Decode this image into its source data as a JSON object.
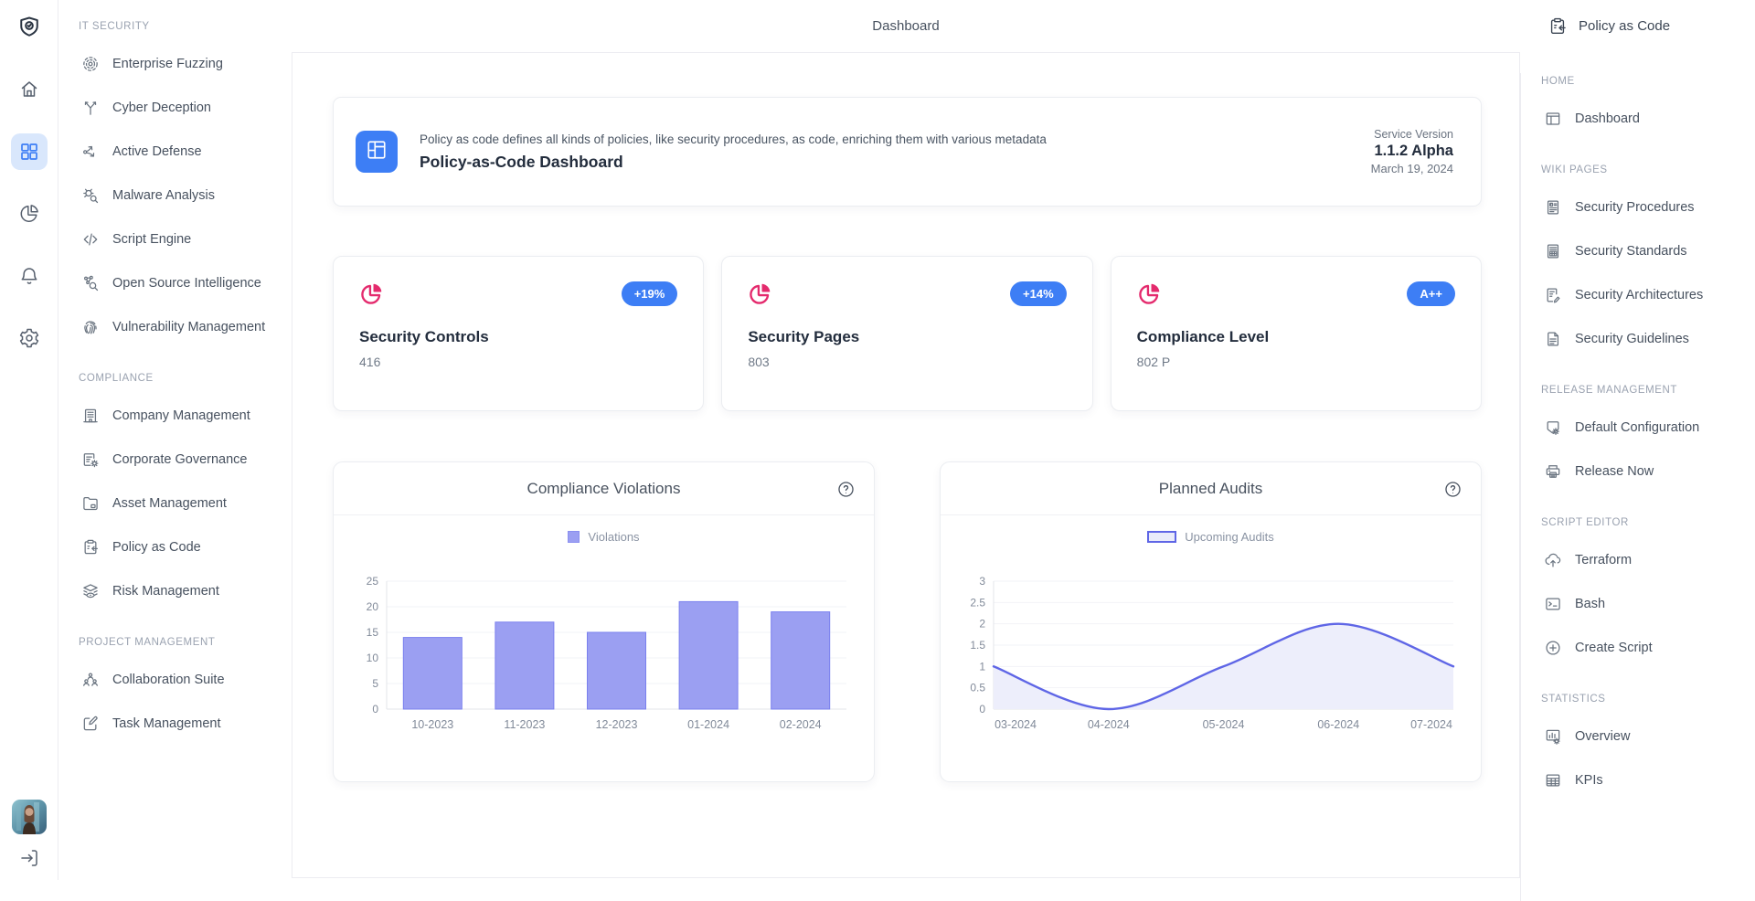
{
  "topbar": {
    "title": "Dashboard"
  },
  "rail": {
    "items": [
      {
        "name": "app-logo",
        "icon": "shield-logo-icon",
        "interactable": false,
        "active": false
      },
      {
        "name": "rail-home",
        "icon": "home-icon",
        "interactable": true,
        "active": false
      },
      {
        "name": "rail-dashboard",
        "icon": "grid-icon",
        "interactable": true,
        "active": true
      },
      {
        "name": "rail-analytics",
        "icon": "pie-chart-icon",
        "interactable": true,
        "active": false
      },
      {
        "name": "rail-notifications",
        "icon": "bell-icon",
        "interactable": true,
        "active": false
      },
      {
        "name": "rail-settings",
        "icon": "gear-icon",
        "interactable": true,
        "active": false
      }
    ],
    "avatar_name": "user-avatar",
    "logout_icon": "logout-icon"
  },
  "sidebar": {
    "sections": [
      {
        "header": "IT SECURITY",
        "items": [
          {
            "label": "Enterprise Fuzzing",
            "icon": "target-icon"
          },
          {
            "label": "Cyber Deception",
            "icon": "branch-icon"
          },
          {
            "label": "Active Defense",
            "icon": "route-icon"
          },
          {
            "label": "Malware Analysis",
            "icon": "bug-search-icon"
          },
          {
            "label": "Script Engine",
            "icon": "code-icon"
          },
          {
            "label": "Open Source Intelligence",
            "icon": "network-search-icon"
          },
          {
            "label": "Vulnerability Management",
            "icon": "fingerprint-icon"
          }
        ]
      },
      {
        "header": "COMPLIANCE",
        "items": [
          {
            "label": "Company Management",
            "icon": "building-icon"
          },
          {
            "label": "Corporate Governance",
            "icon": "list-gear-icon"
          },
          {
            "label": "Asset Management",
            "icon": "folder-icon"
          },
          {
            "label": "Policy as Code",
            "icon": "clipboard-arrow-icon"
          },
          {
            "label": "Risk Management",
            "icon": "layers-eye-icon"
          }
        ]
      },
      {
        "header": "PROJECT MANAGEMENT",
        "items": [
          {
            "label": "Collaboration Suite",
            "icon": "users-icon"
          },
          {
            "label": "Task Management",
            "icon": "edit-square-icon"
          }
        ]
      }
    ]
  },
  "main": {
    "hero": {
      "icon": "layout-icon",
      "description": "Policy as code defines all kinds of policies, like security procedures, as code, enriching them with various metadata",
      "title": "Policy-as-Code Dashboard",
      "service_label": "Service Version",
      "version": "1.1.2 Alpha",
      "date": "March 19, 2024"
    },
    "stats": [
      {
        "title": "Security Controls",
        "value": "416",
        "badge": "+19%",
        "icon": "pie-slice-icon"
      },
      {
        "title": "Security Pages",
        "value": "803",
        "badge": "+14%",
        "icon": "pie-slice-icon"
      },
      {
        "title": "Compliance Level",
        "value": "802 P",
        "badge": "A++",
        "icon": "pie-slice-icon"
      }
    ]
  },
  "chart_data": [
    {
      "type": "bar",
      "title": "Compliance Violations",
      "categories": [
        "10-2023",
        "11-2023",
        "12-2023",
        "01-2024",
        "02-2024"
      ],
      "series": [
        {
          "name": "Violations",
          "values": [
            14,
            17,
            15,
            21,
            19
          ]
        }
      ],
      "xlabel": "",
      "ylabel": "",
      "ylim": [
        0,
        25
      ],
      "ytick_step": 5,
      "grid": true,
      "legend_position": "top",
      "colors": {
        "bar_fill": "#9b9ff2",
        "bar_edge": "#7a80ee"
      },
      "help_icon": "help-icon"
    },
    {
      "type": "area",
      "title": "Planned Audits",
      "categories": [
        "03-2024",
        "04-2024",
        "05-2024",
        "06-2024",
        "07-2024"
      ],
      "series": [
        {
          "name": "Upcoming Audits",
          "values": [
            1,
            0,
            1,
            2,
            1
          ]
        }
      ],
      "xlabel": "",
      "ylabel": "",
      "ylim": [
        0,
        3
      ],
      "ytick_step": 0.5,
      "grid": true,
      "legend_position": "top",
      "colors": {
        "line": "#5f66e6",
        "fill": "#edeefb"
      },
      "help_icon": "help-icon"
    }
  ],
  "rightbar": {
    "title": "Policy as Code",
    "icon": "clipboard-arrow-icon",
    "sections": [
      {
        "header": "HOME",
        "items": [
          {
            "label": "Dashboard",
            "icon": "window-icon"
          }
        ]
      },
      {
        "header": "WIKI PAGES",
        "items": [
          {
            "label": "Security Procedures",
            "icon": "doc-badge-icon"
          },
          {
            "label": "Security Standards",
            "icon": "doc-table-icon"
          },
          {
            "label": "Security Architectures",
            "icon": "doc-pen-icon"
          },
          {
            "label": "Security Guidelines",
            "icon": "doc-text-icon"
          }
        ]
      },
      {
        "header": "RELEASE MANAGEMENT",
        "items": [
          {
            "label": "Default Configuration",
            "icon": "box-gear-icon"
          },
          {
            "label": "Release Now",
            "icon": "printer-icon"
          }
        ]
      },
      {
        "header": "SCRIPT EDITOR",
        "items": [
          {
            "label": "Terraform",
            "icon": "cloud-upload-icon"
          },
          {
            "label": "Bash",
            "icon": "terminal-icon"
          },
          {
            "label": "Create Script",
            "icon": "plus-circle-icon"
          }
        ]
      },
      {
        "header": "STATISTICS",
        "items": [
          {
            "label": "Overview",
            "icon": "chart-gear-icon"
          },
          {
            "label": "KPIs",
            "icon": "table-icon"
          }
        ]
      }
    ]
  }
}
